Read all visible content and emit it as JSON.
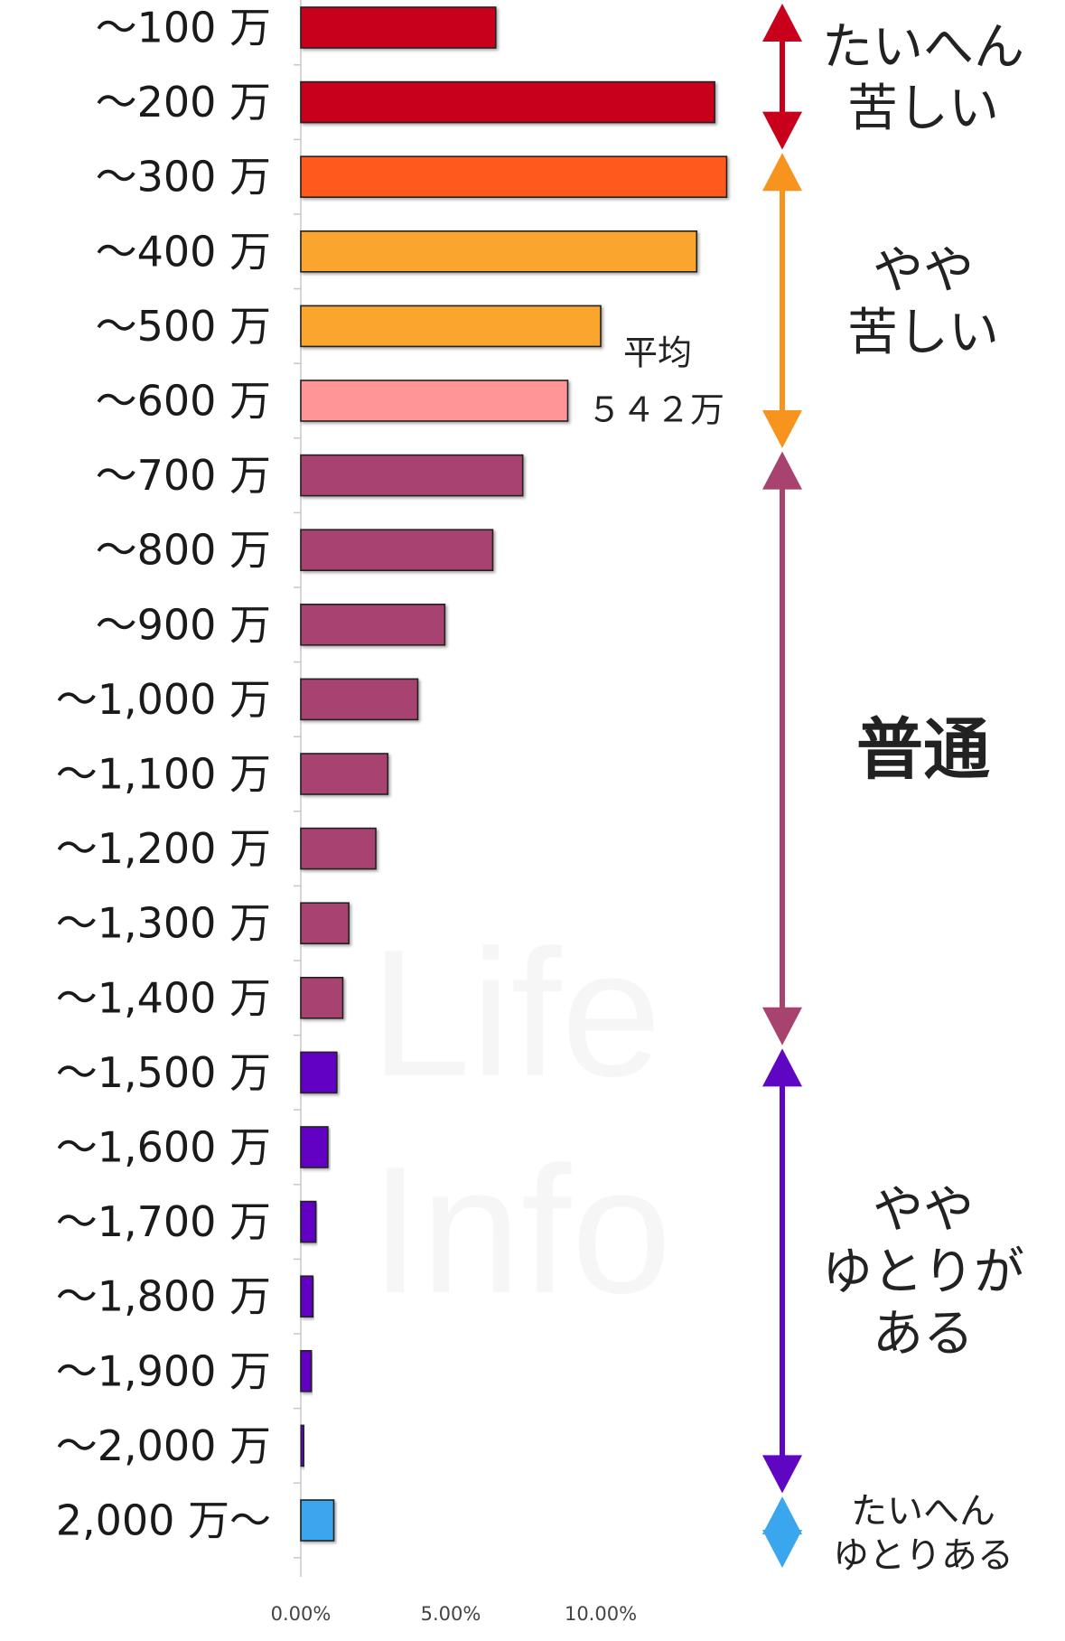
{
  "chart_data": {
    "type": "bar",
    "orientation": "horizontal",
    "categories": [
      "～100 万",
      "～200 万",
      "～300 万",
      "～400 万",
      "～500 万",
      "～600 万",
      "～700 万",
      "～800 万",
      "～900 万",
      "～1,000 万",
      "～1,100 万",
      "～1,200 万",
      "～1,300 万",
      "～1,400 万",
      "～1,500 万",
      "～1,600 万",
      "～1,700 万",
      "～1,800 万",
      "～1,900 万",
      "～2,000 万",
      "2,000 万～"
    ],
    "values": [
      6.5,
      13.8,
      14.2,
      13.2,
      10.0,
      8.9,
      7.4,
      6.4,
      4.8,
      3.9,
      2.9,
      2.5,
      1.6,
      1.4,
      1.2,
      0.9,
      0.5,
      0.4,
      0.35,
      0.1,
      1.1
    ],
    "bar_colors": [
      "#c8001c",
      "#c8001c",
      "#ff5a1f",
      "#f9a52e",
      "#f9a52e",
      "#ff9597",
      "#a8426f",
      "#a8426f",
      "#a8426f",
      "#a8426f",
      "#a8426f",
      "#a8426f",
      "#a8426f",
      "#a8426f",
      "#6200c4",
      "#6200c4",
      "#6200c4",
      "#6200c4",
      "#6200c4",
      "#6200c4",
      "#3aa6ee"
    ],
    "xlim": [
      0,
      15
    ],
    "x_ticks": [
      0,
      5,
      10
    ],
    "x_tick_labels": [
      "0.00%",
      "5.00%",
      "10.00%"
    ],
    "title": "",
    "xlabel": "",
    "ylabel": "",
    "grid": false,
    "average_annotation": {
      "label_line1": "平均",
      "label_line2": "５４２万",
      "category": "～600 万"
    },
    "bands": [
      {
        "label_lines": [
          "たいへん",
          "苦しい"
        ],
        "color": "#c8001c",
        "from": "～100 万",
        "to": "～200 万",
        "size": "large"
      },
      {
        "label_lines": [
          "やや",
          "苦しい"
        ],
        "color": "#f7941d",
        "from": "～300 万",
        "to": "～600 万",
        "size": "large"
      },
      {
        "label_lines": [
          "普通"
        ],
        "color": "#a8426f",
        "from": "～700 万",
        "to": "～1,400 万",
        "size": "xlarge"
      },
      {
        "label_lines": [
          "やや",
          "ゆとりが",
          "ある"
        ],
        "color": "#5f06c2",
        "from": "～1,500 万",
        "to": "～2,000 万",
        "size": "large"
      },
      {
        "label_lines": [
          "たいへん",
          "ゆとりある"
        ],
        "color": "#3aa6ee",
        "from": "2,000 万～",
        "to": "2,000 万～",
        "size": "medium"
      }
    ],
    "watermark_lines": [
      "Life",
      "Info"
    ]
  }
}
